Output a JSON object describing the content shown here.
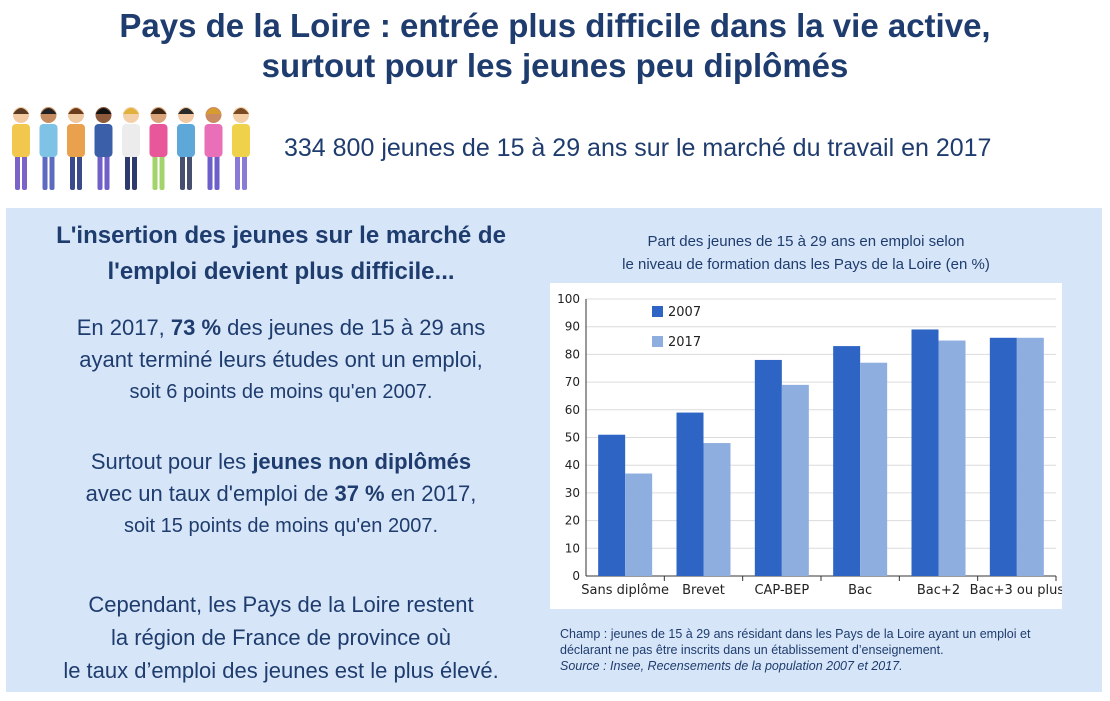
{
  "header": {
    "title_line1": "Pays de la Loire : entrée plus difficile dans la vie active,",
    "title_line2": "surtout pour les jeunes peu diplômés",
    "headline": "334 800 jeunes de 15 à 29 ans sur le marché du travail en 2017"
  },
  "left": {
    "title_line1": "L'insertion des jeunes sur le marché de",
    "title_line2": "l'emploi devient plus difficile...",
    "p1": {
      "l1_pre": "En 2017, ",
      "l1_bold": "73 %",
      "l1_post": " des jeunes de 15 à 29 ans",
      "l2": "ayant terminé leurs études ont un emploi,",
      "l3": "soit 6 points de moins qu'en 2007."
    },
    "p2": {
      "l1_pre": "Surtout pour les ",
      "l1_bold": "jeunes non diplômés",
      "l2_pre": "avec un taux d'emploi de ",
      "l2_bold": "37 %",
      "l2_post": " en 2017,",
      "l3": "soit 15 points de moins qu'en 2007."
    },
    "p3": {
      "l1": "Cependant, les Pays de la Loire restent",
      "l2": "la région de France de province où",
      "l3": "le taux d’emploi des jeunes est le plus élevé."
    }
  },
  "chart_data": {
    "type": "bar",
    "title_line1": "Part des jeunes de 15 à 29 ans en emploi selon",
    "title_line2": "le niveau de formation dans les Pays de la Loire (en %)",
    "categories": [
      "Sans diplôme",
      "Brevet",
      "CAP-BEP",
      "Bac",
      "Bac+2",
      "Bac+3 ou plus"
    ],
    "series": [
      {
        "name": "2007",
        "values": [
          51,
          59,
          78,
          83,
          89,
          86
        ],
        "color": "#2e64c4"
      },
      {
        "name": "2017",
        "values": [
          37,
          48,
          69,
          77,
          85,
          86
        ],
        "color": "#8eaee0"
      }
    ],
    "ylim": [
      0,
      100
    ],
    "yticks": [
      "0",
      "10",
      "20",
      "30",
      "40",
      "50",
      "60",
      "70",
      "80",
      "90",
      "100"
    ],
    "legend": "top-left",
    "grid": true
  },
  "notes": {
    "champ_line1": "Champ : jeunes de 15 à 29 ans résidant dans les Pays de la Loire ayant un emploi et",
    "champ_line2": "déclarant ne pas être inscrits dans un établissement d’enseignement.",
    "source": "Source : Insee, Recensements de la population 2007 et 2017."
  },
  "colors": {
    "title": "#1f3c6e",
    "panel": "#d6e6f8",
    "bar_2007": "#2e64c4",
    "bar_2017": "#8eaee0"
  },
  "illustration": {
    "icon": "group-of-young-people-icon"
  }
}
